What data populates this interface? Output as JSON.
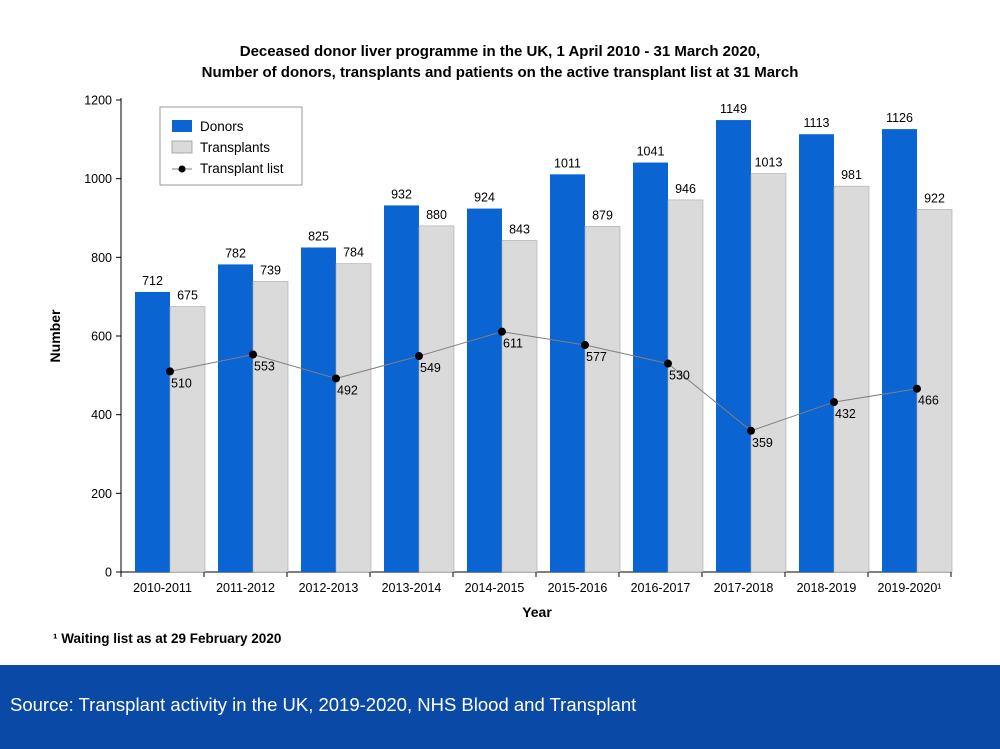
{
  "colors": {
    "donors": "#0a64d2",
    "transplants": "#dadada",
    "transplant_list_line": "#7f7f7f",
    "transplant_list_marker": "#000000",
    "source_band": "#0a4aa6"
  },
  "footnote": "¹ Waiting list as at 29 February 2020",
  "source": "Source:  Transplant activity in the UK, 2019-2020, NHS Blood and Transplant",
  "chart_data": {
    "type": "bar",
    "title": "Deceased donor liver programme in the UK, 1 April 2010 - 31 March 2020,",
    "subtitle": "Number of donors, transplants and patients on the active transplant list at 31 March",
    "xlabel": "Year",
    "ylabel": "Number",
    "ylim": [
      0,
      1200
    ],
    "yticks": [
      0,
      200,
      400,
      600,
      800,
      1000,
      1200
    ],
    "grid": false,
    "legend_position": "top-left",
    "categories": [
      "2010-2011",
      "2011-2012",
      "2012-2013",
      "2013-2014",
      "2014-2015",
      "2015-2016",
      "2016-2017",
      "2017-2018",
      "2018-2019",
      "2019-2020¹"
    ],
    "series": [
      {
        "name": "Donors",
        "type": "bar",
        "values": [
          712,
          782,
          825,
          932,
          924,
          1011,
          1041,
          1149,
          1113,
          1126
        ]
      },
      {
        "name": "Transplants",
        "type": "bar",
        "values": [
          675,
          739,
          784,
          880,
          843,
          879,
          946,
          1013,
          981,
          922
        ]
      },
      {
        "name": "Transplant list",
        "type": "line",
        "values": [
          510,
          553,
          492,
          549,
          611,
          577,
          530,
          359,
          432,
          466
        ]
      }
    ]
  }
}
